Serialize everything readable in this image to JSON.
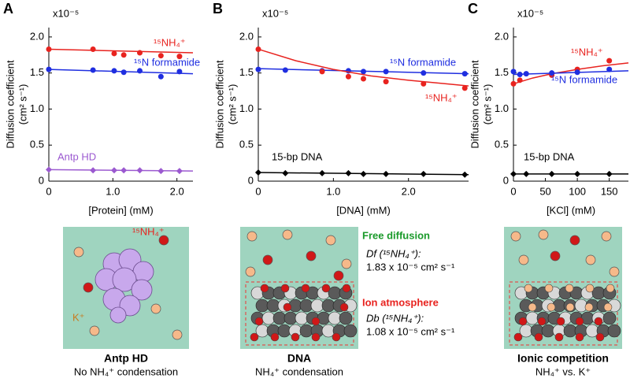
{
  "chart_data": [
    {
      "type": "scatter",
      "panel": "A",
      "multiplier": "x10⁻⁵",
      "ylabel": [
        "Diffusion coefficient",
        "(cm² s⁻¹)"
      ],
      "xlabel": "[Protein] (mM)",
      "xlim": [
        0,
        2.25
      ],
      "xticks": [
        0,
        {
          "value": 1,
          "label": "1.0"
        },
        {
          "value": 2,
          "label": "2.0"
        }
      ],
      "ylim": [
        0,
        2.13
      ],
      "yticks": [
        0,
        0.5,
        {
          "value": 1,
          "label": "1.0"
        },
        1.5,
        {
          "value": 2,
          "label": "2.0"
        }
      ],
      "series": [
        {
          "name": "¹⁵NH₄⁺",
          "color": "#e8231f",
          "marker": "circle",
          "x": [
            0,
            0.69,
            1.02,
            1.17,
            1.42,
            1.75,
            2.04
          ],
          "values": [
            1.83,
            1.83,
            1.77,
            1.75,
            1.78,
            1.74,
            1.73
          ],
          "fit_x": [
            0,
            2.25
          ],
          "fit_values": [
            1.83,
            1.78
          ]
        },
        {
          "name": "¹⁵N formamide",
          "color": "#1f2ee0",
          "marker": "circle",
          "x": [
            0,
            0.69,
            1.02,
            1.17,
            1.42,
            1.75,
            2.04
          ],
          "values": [
            1.55,
            1.54,
            1.53,
            1.51,
            1.53,
            1.45,
            1.52
          ],
          "fit_x": [
            0,
            2.25
          ],
          "fit_values": [
            1.55,
            1.49
          ]
        },
        {
          "name": "Antp HD",
          "color": "#9b59d0",
          "marker": "diamond",
          "x": [
            0,
            0.69,
            1.02,
            1.17,
            1.42,
            1.75,
            2.04
          ],
          "values": [
            0.16,
            0.15,
            0.15,
            0.15,
            0.15,
            0.14,
            0.14
          ],
          "fit_x": [
            0,
            2.25
          ],
          "fit_values": [
            0.16,
            0.14
          ]
        }
      ]
    },
    {
      "type": "scatter",
      "panel": "B",
      "multiplier": "x10⁻⁵",
      "ylabel": [
        "Diffusion coefficient",
        "(cm² s⁻¹)"
      ],
      "xlabel": "[DNA] (mM)",
      "xlim": [
        0,
        2.8
      ],
      "xticks": [
        0,
        {
          "value": 1,
          "label": "1.0"
        },
        {
          "value": 2,
          "label": "2.0"
        }
      ],
      "ylim": [
        0,
        2.13
      ],
      "yticks": [
        0,
        0.5,
        {
          "value": 1,
          "label": "1.0"
        },
        1.5,
        {
          "value": 2,
          "label": "2.0"
        }
      ],
      "series": [
        {
          "name": "¹⁵N formamide",
          "color": "#1f2ee0",
          "marker": "circle",
          "x": [
            0,
            0.36,
            0.85,
            1.2,
            1.4,
            1.7,
            2.2,
            2.75
          ],
          "values": [
            1.55,
            1.54,
            1.53,
            1.53,
            1.52,
            1.52,
            1.5,
            1.49
          ],
          "fit_x": [
            0,
            2.8
          ],
          "fit_values": [
            1.56,
            1.49
          ]
        },
        {
          "name": "¹⁵NH₄⁺",
          "color": "#e8231f",
          "marker": "circle",
          "x": [
            0,
            0.85,
            1.2,
            1.4,
            1.7,
            2.2,
            2.75
          ],
          "values": [
            1.83,
            1.52,
            1.45,
            1.42,
            1.38,
            1.35,
            1.29
          ],
          "fit_x": [
            0,
            0.5,
            1,
            1.5,
            2,
            2.5,
            2.8
          ],
          "fit_values": [
            1.83,
            1.67,
            1.55,
            1.46,
            1.4,
            1.35,
            1.32
          ]
        },
        {
          "name": "15-bp DNA",
          "color": "#000000",
          "marker": "diamond",
          "x": [
            0,
            0.36,
            0.85,
            1.2,
            1.4,
            1.7,
            2.2,
            2.75
          ],
          "values": [
            0.12,
            0.11,
            0.11,
            0.11,
            0.1,
            0.1,
            0.1,
            0.09
          ],
          "fit_x": [
            0,
            2.8
          ],
          "fit_values": [
            0.12,
            0.09
          ]
        }
      ]
    },
    {
      "type": "scatter",
      "panel": "C",
      "multiplier": "x10⁻⁵",
      "ylabel": [
        "Diffusion coefficient",
        "(cm² s⁻¹)"
      ],
      "xlabel": "[KCl] (mM)",
      "xlim": [
        0,
        180
      ],
      "xticks": [
        0,
        50,
        100,
        150
      ],
      "ylim": [
        0,
        2.13
      ],
      "yticks": [
        0,
        0.5,
        {
          "value": 1,
          "label": "1.0"
        },
        1.5,
        {
          "value": 2,
          "label": "2.0"
        }
      ],
      "series": [
        {
          "name": "¹⁵NH₄⁺",
          "color": "#e8231f",
          "marker": "circle",
          "x": [
            0,
            10,
            60,
            100,
            150
          ],
          "values": [
            1.35,
            1.4,
            1.47,
            1.55,
            1.67
          ],
          "fit_x": [
            0,
            30,
            60,
            100,
            140,
            180
          ],
          "fit_values": [
            1.35,
            1.43,
            1.49,
            1.55,
            1.6,
            1.64
          ]
        },
        {
          "name": "¹⁵N formamide",
          "color": "#1f2ee0",
          "marker": "circle",
          "x": [
            0,
            10,
            20,
            60,
            100,
            150
          ],
          "values": [
            1.52,
            1.48,
            1.49,
            1.5,
            1.51,
            1.55
          ],
          "fit_x": [
            0,
            180
          ],
          "fit_values": [
            1.48,
            1.53
          ]
        },
        {
          "name": "15-bp DNA",
          "color": "#000000",
          "marker": "diamond",
          "x": [
            0,
            20,
            60,
            100,
            150
          ],
          "values": [
            0.1,
            0.1,
            0.1,
            0.1,
            0.1
          ],
          "fit_x": [
            0,
            180
          ],
          "fit_values": [
            0.1,
            0.1
          ]
        }
      ]
    }
  ],
  "illustrations": {
    "a": {
      "ion": "¹⁵NH₄⁺",
      "k": "K⁺",
      "title": "Antp HD",
      "subtitle": "No NH₄⁺ condensation"
    },
    "b": {
      "title": "DNA",
      "subtitle": "NH₄⁺ condensation",
      "free": "Free diffusion",
      "df": "Df (¹⁵NH₄⁺):",
      "df_value": "1.83 x 10⁻⁵ cm² s⁻¹",
      "atmos": "Ion atmosphere",
      "db": "Db (¹⁵NH₄⁺):",
      "db_value": "1.08 x 10⁻⁵ cm² s⁻¹"
    },
    "c": {
      "title": "Ionic competition",
      "subtitle": "NH₄⁺ vs. K⁺"
    }
  }
}
